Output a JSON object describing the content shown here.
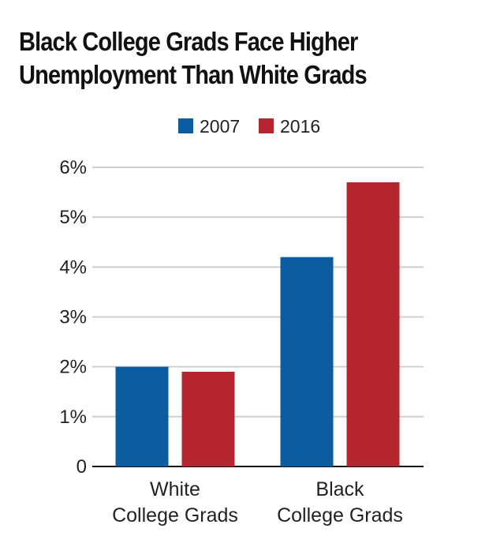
{
  "chart_data": {
    "type": "bar",
    "title": "Black College Grads Face Higher Unemployment Than White Grads",
    "title_lines": [
      "Black College Grads Face Higher",
      "Unemployment Than White Grads"
    ],
    "categories": [
      "White College Grads",
      "Black College Grads"
    ],
    "category_lines": [
      [
        "White",
        "College Grads"
      ],
      [
        "Black",
        "College Grads"
      ]
    ],
    "series": [
      {
        "name": "2007",
        "color": "#0c5da0",
        "values": [
          2.0,
          4.2
        ]
      },
      {
        "name": "2016",
        "color": "#b62630",
        "values": [
          1.9,
          5.7
        ]
      }
    ],
    "ylim": [
      0,
      6
    ],
    "yticks": [
      0,
      1,
      2,
      3,
      4,
      5,
      6
    ],
    "ytick_labels": [
      "0",
      "1%",
      "2%",
      "3%",
      "4%",
      "5%",
      "6%"
    ],
    "xlabel": "",
    "ylabel": "",
    "grid": true,
    "legend": "top-center"
  }
}
